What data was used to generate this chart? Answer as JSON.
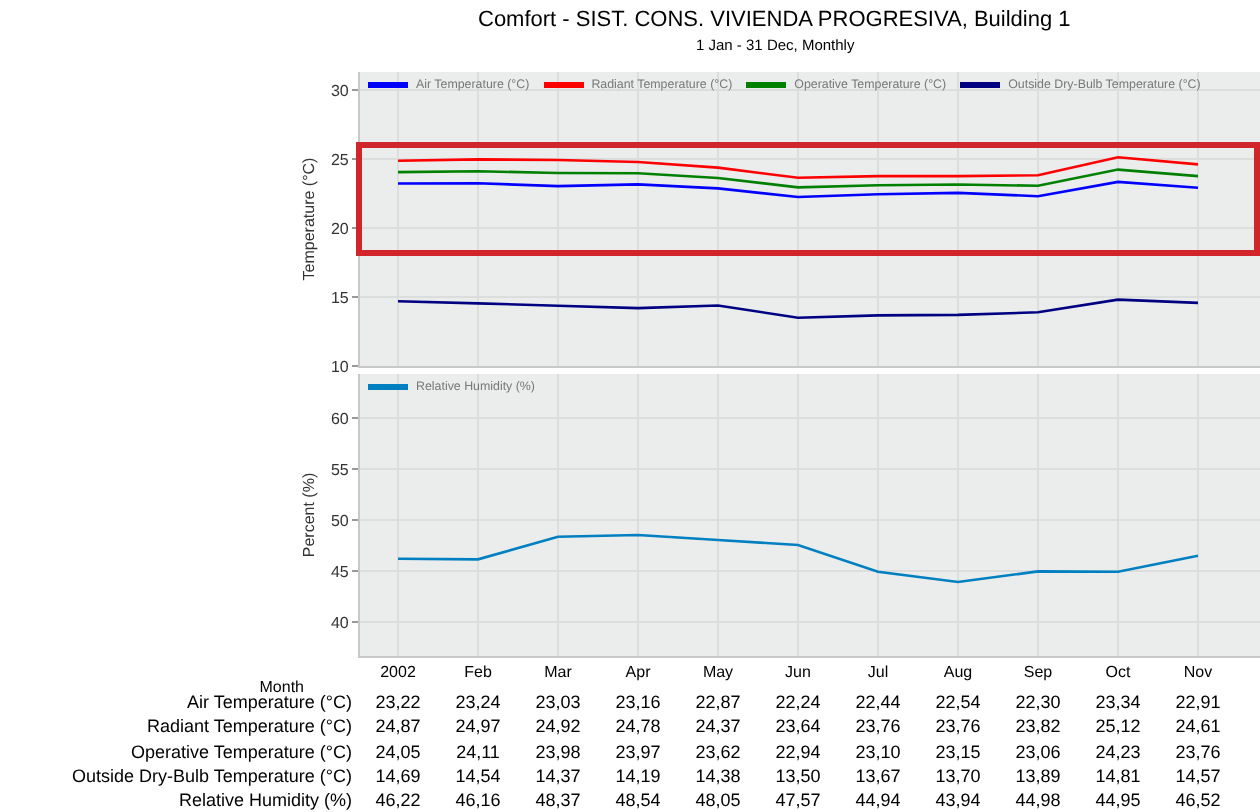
{
  "chart_data": [
    {
      "type": "line",
      "title": "Comfort - SIST. CONS. VIVIENDA PROGRESIVA, Building 1",
      "subtitle": "1 Jan - 31 Dec, Monthly",
      "ylabel": "Temperature (°C)",
      "categories": [
        "2002",
        "Feb",
        "Mar",
        "Apr",
        "May",
        "Jun",
        "Jul",
        "Aug",
        "Sep",
        "Oct",
        "Nov"
      ],
      "series": [
        {
          "name": "Air Temperature (°C)",
          "color": "#0000ff",
          "values": [
            23.22,
            23.24,
            23.03,
            23.16,
            22.87,
            22.24,
            22.44,
            22.54,
            22.3,
            23.34,
            22.91
          ],
          "value_labels": [
            "23,22",
            "23,24",
            "23,03",
            "23,16",
            "22,87",
            "22,24",
            "22,44",
            "22,54",
            "22,30",
            "23,34",
            "22,91"
          ]
        },
        {
          "name": "Radiant Temperature (°C)",
          "color": "#ff0000",
          "values": [
            24.87,
            24.97,
            24.92,
            24.78,
            24.37,
            23.64,
            23.76,
            23.76,
            23.82,
            25.12,
            24.61
          ],
          "value_labels": [
            "24,87",
            "24,97",
            "24,92",
            "24,78",
            "24,37",
            "23,64",
            "23,76",
            "23,76",
            "23,82",
            "25,12",
            "24,61"
          ]
        },
        {
          "name": "Operative Temperature (°C)",
          "color": "#008000",
          "values": [
            24.05,
            24.11,
            23.98,
            23.97,
            23.62,
            22.94,
            23.1,
            23.15,
            23.06,
            24.23,
            23.76
          ],
          "value_labels": [
            "24,05",
            "24,11",
            "23,98",
            "23,97",
            "23,62",
            "22,94",
            "23,10",
            "23,15",
            "23,06",
            "24,23",
            "23,76"
          ]
        },
        {
          "name": "Outside Dry-Bulb Temperature (°C)",
          "color": "#000080",
          "values": [
            14.69,
            14.54,
            14.37,
            14.19,
            14.38,
            13.5,
            13.67,
            13.7,
            13.89,
            14.81,
            14.57
          ],
          "value_labels": [
            "14,69",
            "14,54",
            "14,37",
            "14,19",
            "14,38",
            "13,50",
            "13,67",
            "13,70",
            "13,89",
            "14,81",
            "14,57"
          ]
        }
      ],
      "ylim": [
        10,
        31.3
      ],
      "yticks": [
        10,
        15,
        20,
        25,
        30
      ],
      "grid": true,
      "legend": "top left",
      "tick_labels": "y"
    },
    {
      "type": "line",
      "xlabel": "Month",
      "ylabel": "Percent (%)",
      "categories": [
        "2002",
        "Feb",
        "Mar",
        "Apr",
        "May",
        "Jun",
        "Jul",
        "Aug",
        "Sep",
        "Oct",
        "Nov"
      ],
      "series": [
        {
          "name": "Relative Humidity (%)",
          "color": "#0080c0",
          "values": [
            46.22,
            46.16,
            48.37,
            48.54,
            48.05,
            47.57,
            44.94,
            43.94,
            44.98,
            44.95,
            46.52
          ],
          "value_labels": [
            "46,22",
            "46,16",
            "48,37",
            "48,54",
            "48,05",
            "47,57",
            "44,94",
            "43,94",
            "44,98",
            "44,95",
            "46,52"
          ]
        }
      ],
      "ylim": [
        36.7,
        64.3
      ],
      "yticks": [
        40,
        45,
        50,
        55,
        60
      ],
      "grid": true,
      "legend": "top left"
    }
  ]
}
